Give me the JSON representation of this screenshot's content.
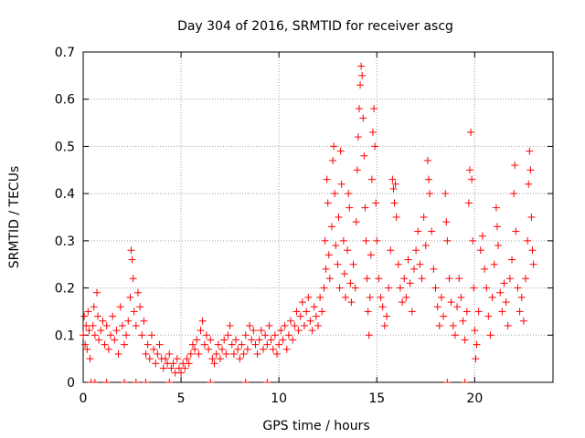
{
  "chart_data": {
    "type": "scatter",
    "title": "Day 304 of 2016, SRMTID for receiver ascg",
    "xlabel": "GPS time / hours",
    "ylabel": "SRMTID / TECUs",
    "xlim": [
      0,
      24
    ],
    "ylim": [
      0,
      0.7
    ],
    "xticks": [
      0,
      5,
      10,
      15,
      20
    ],
    "yticks": [
      0,
      0.1,
      0.2,
      0.3,
      0.4,
      0.5,
      0.6,
      0.7
    ],
    "xtick_labels": [
      "0",
      "5",
      "10",
      "15",
      "20"
    ],
    "ytick_labels": [
      "0",
      "0.1",
      "0.2",
      "0.3",
      "0.4",
      "0.5",
      "0.6",
      "0.7"
    ],
    "grid": true,
    "marker": "+",
    "color": "#ff0000",
    "series": [
      {
        "name": "SRMTID",
        "points": [
          [
            0.0,
            0.1
          ],
          [
            0.05,
            0.14
          ],
          [
            0.1,
            0.08
          ],
          [
            0.15,
            0.12
          ],
          [
            0.2,
            0.07
          ],
          [
            0.25,
            0.15
          ],
          [
            0.3,
            0.11
          ],
          [
            0.35,
            0.05
          ],
          [
            0.5,
            0.12
          ],
          [
            0.55,
            0.16
          ],
          [
            0.6,
            0.1
          ],
          [
            0.7,
            0.19
          ],
          [
            0.75,
            0.14
          ],
          [
            0.8,
            0.09
          ],
          [
            0.9,
            0.11
          ],
          [
            1.0,
            0.13
          ],
          [
            1.1,
            0.08
          ],
          [
            1.2,
            0.12
          ],
          [
            1.3,
            0.07
          ],
          [
            1.4,
            0.1
          ],
          [
            1.5,
            0.14
          ],
          [
            1.6,
            0.09
          ],
          [
            1.7,
            0.11
          ],
          [
            1.8,
            0.06
          ],
          [
            1.9,
            0.16
          ],
          [
            2.0,
            0.12
          ],
          [
            2.1,
            0.08
          ],
          [
            2.2,
            0.1
          ],
          [
            2.3,
            0.13
          ],
          [
            2.4,
            0.18
          ],
          [
            2.45,
            0.28
          ],
          [
            2.5,
            0.26
          ],
          [
            2.55,
            0.22
          ],
          [
            2.6,
            0.15
          ],
          [
            2.7,
            0.12
          ],
          [
            2.8,
            0.19
          ],
          [
            2.9,
            0.16
          ],
          [
            3.0,
            0.1
          ],
          [
            3.1,
            0.13
          ],
          [
            3.2,
            0.06
          ],
          [
            3.3,
            0.08
          ],
          [
            3.4,
            0.05
          ],
          [
            3.5,
            0.1
          ],
          [
            3.6,
            0.07
          ],
          [
            3.7,
            0.04
          ],
          [
            3.8,
            0.06
          ],
          [
            3.9,
            0.08
          ],
          [
            4.0,
            0.05
          ],
          [
            4.1,
            0.03
          ],
          [
            4.2,
            0.05
          ],
          [
            4.3,
            0.04
          ],
          [
            4.4,
            0.06
          ],
          [
            4.5,
            0.03
          ],
          [
            4.6,
            0.04
          ],
          [
            4.7,
            0.02
          ],
          [
            4.8,
            0.05
          ],
          [
            4.9,
            0.03
          ],
          [
            5.0,
            0.02
          ],
          [
            5.1,
            0.04
          ],
          [
            5.2,
            0.03
          ],
          [
            5.3,
            0.05
          ],
          [
            5.4,
            0.04
          ],
          [
            5.5,
            0.06
          ],
          [
            5.6,
            0.08
          ],
          [
            5.7,
            0.07
          ],
          [
            5.8,
            0.09
          ],
          [
            5.9,
            0.06
          ],
          [
            6.0,
            0.11
          ],
          [
            6.1,
            0.13
          ],
          [
            6.2,
            0.08
          ],
          [
            6.3,
            0.1
          ],
          [
            6.4,
            0.07
          ],
          [
            6.5,
            0.09
          ],
          [
            6.6,
            0.05
          ],
          [
            6.7,
            0.04
          ],
          [
            6.8,
            0.06
          ],
          [
            6.9,
            0.08
          ],
          [
            7.0,
            0.05
          ],
          [
            7.1,
            0.07
          ],
          [
            7.2,
            0.09
          ],
          [
            7.3,
            0.06
          ],
          [
            7.4,
            0.1
          ],
          [
            7.5,
            0.12
          ],
          [
            7.6,
            0.08
          ],
          [
            7.7,
            0.06
          ],
          [
            7.8,
            0.09
          ],
          [
            7.9,
            0.07
          ],
          [
            8.0,
            0.05
          ],
          [
            8.1,
            0.08
          ],
          [
            8.2,
            0.06
          ],
          [
            8.3,
            0.1
          ],
          [
            8.4,
            0.07
          ],
          [
            8.5,
            0.12
          ],
          [
            8.6,
            0.09
          ],
          [
            8.7,
            0.11
          ],
          [
            8.8,
            0.08
          ],
          [
            8.9,
            0.06
          ],
          [
            9.0,
            0.09
          ],
          [
            9.1,
            0.11
          ],
          [
            9.2,
            0.07
          ],
          [
            9.3,
            0.1
          ],
          [
            9.4,
            0.08
          ],
          [
            9.5,
            0.12
          ],
          [
            9.6,
            0.09
          ],
          [
            9.7,
            0.07
          ],
          [
            9.8,
            0.1
          ],
          [
            9.9,
            0.06
          ],
          [
            10.0,
            0.08
          ],
          [
            10.1,
            0.11
          ],
          [
            10.2,
            0.09
          ],
          [
            10.3,
            0.12
          ],
          [
            10.4,
            0.07
          ],
          [
            10.5,
            0.1
          ],
          [
            10.6,
            0.13
          ],
          [
            10.7,
            0.09
          ],
          [
            10.8,
            0.12
          ],
          [
            10.9,
            0.15
          ],
          [
            11.0,
            0.11
          ],
          [
            11.1,
            0.14
          ],
          [
            11.2,
            0.17
          ],
          [
            11.3,
            0.12
          ],
          [
            11.4,
            0.15
          ],
          [
            11.5,
            0.18
          ],
          [
            11.6,
            0.13
          ],
          [
            11.7,
            0.11
          ],
          [
            11.8,
            0.16
          ],
          [
            11.9,
            0.14
          ],
          [
            12.0,
            0.12
          ],
          [
            12.1,
            0.18
          ],
          [
            12.2,
            0.15
          ],
          [
            12.3,
            0.2
          ],
          [
            12.35,
            0.3
          ],
          [
            12.4,
            0.24
          ],
          [
            12.45,
            0.43
          ],
          [
            12.5,
            0.38
          ],
          [
            12.55,
            0.27
          ],
          [
            12.6,
            0.22
          ],
          [
            12.7,
            0.33
          ],
          [
            12.75,
            0.47
          ],
          [
            12.8,
            0.5
          ],
          [
            12.85,
            0.4
          ],
          [
            12.9,
            0.29
          ],
          [
            13.0,
            0.25
          ],
          [
            13.05,
            0.35
          ],
          [
            13.1,
            0.2
          ],
          [
            13.15,
            0.49
          ],
          [
            13.2,
            0.42
          ],
          [
            13.3,
            0.3
          ],
          [
            13.35,
            0.23
          ],
          [
            13.4,
            0.18
          ],
          [
            13.5,
            0.28
          ],
          [
            13.55,
            0.4
          ],
          [
            13.6,
            0.37
          ],
          [
            13.65,
            0.21
          ],
          [
            13.7,
            0.17
          ],
          [
            13.8,
            0.25
          ],
          [
            13.9,
            0.2
          ],
          [
            13.95,
            0.34
          ],
          [
            14.0,
            0.45
          ],
          [
            14.05,
            0.52
          ],
          [
            14.1,
            0.58
          ],
          [
            14.15,
            0.63
          ],
          [
            14.2,
            0.67
          ],
          [
            14.25,
            0.65
          ],
          [
            14.3,
            0.56
          ],
          [
            14.35,
            0.48
          ],
          [
            14.4,
            0.37
          ],
          [
            14.45,
            0.3
          ],
          [
            14.5,
            0.22
          ],
          [
            14.55,
            0.15
          ],
          [
            14.6,
            0.1
          ],
          [
            14.65,
            0.18
          ],
          [
            14.7,
            0.27
          ],
          [
            14.75,
            0.43
          ],
          [
            14.8,
            0.53
          ],
          [
            14.85,
            0.58
          ],
          [
            14.9,
            0.5
          ],
          [
            14.95,
            0.38
          ],
          [
            15.0,
            0.3
          ],
          [
            15.1,
            0.22
          ],
          [
            15.2,
            0.18
          ],
          [
            15.3,
            0.16
          ],
          [
            15.4,
            0.12
          ],
          [
            15.5,
            0.14
          ],
          [
            15.6,
            0.2
          ],
          [
            15.7,
            0.28
          ],
          [
            15.8,
            0.43
          ],
          [
            15.85,
            0.41
          ],
          [
            15.9,
            0.38
          ],
          [
            15.95,
            0.42
          ],
          [
            16.0,
            0.35
          ],
          [
            16.1,
            0.25
          ],
          [
            16.2,
            0.2
          ],
          [
            16.3,
            0.17
          ],
          [
            16.4,
            0.22
          ],
          [
            16.5,
            0.18
          ],
          [
            16.6,
            0.26
          ],
          [
            16.7,
            0.21
          ],
          [
            16.8,
            0.15
          ],
          [
            16.9,
            0.24
          ],
          [
            17.0,
            0.28
          ],
          [
            17.1,
            0.32
          ],
          [
            17.2,
            0.25
          ],
          [
            17.3,
            0.22
          ],
          [
            17.4,
            0.35
          ],
          [
            17.5,
            0.29
          ],
          [
            17.6,
            0.47
          ],
          [
            17.65,
            0.43
          ],
          [
            17.7,
            0.4
          ],
          [
            17.8,
            0.32
          ],
          [
            17.9,
            0.24
          ],
          [
            18.0,
            0.2
          ],
          [
            18.1,
            0.16
          ],
          [
            18.2,
            0.12
          ],
          [
            18.3,
            0.18
          ],
          [
            18.4,
            0.14
          ],
          [
            18.5,
            0.4
          ],
          [
            18.55,
            0.34
          ],
          [
            18.6,
            0.3
          ],
          [
            18.7,
            0.22
          ],
          [
            18.8,
            0.17
          ],
          [
            18.9,
            0.12
          ],
          [
            19.0,
            0.1
          ],
          [
            19.1,
            0.16
          ],
          [
            19.2,
            0.22
          ],
          [
            19.3,
            0.18
          ],
          [
            19.4,
            0.13
          ],
          [
            19.5,
            0.09
          ],
          [
            19.6,
            0.15
          ],
          [
            19.7,
            0.38
          ],
          [
            19.75,
            0.45
          ],
          [
            19.8,
            0.53
          ],
          [
            19.85,
            0.43
          ],
          [
            19.9,
            0.3
          ],
          [
            19.95,
            0.2
          ],
          [
            20.0,
            0.11
          ],
          [
            20.05,
            0.05
          ],
          [
            20.1,
            0.08
          ],
          [
            20.2,
            0.15
          ],
          [
            20.3,
            0.28
          ],
          [
            20.4,
            0.31
          ],
          [
            20.5,
            0.24
          ],
          [
            20.6,
            0.2
          ],
          [
            20.7,
            0.14
          ],
          [
            20.8,
            0.1
          ],
          [
            20.9,
            0.18
          ],
          [
            21.0,
            0.25
          ],
          [
            21.1,
            0.37
          ],
          [
            21.15,
            0.33
          ],
          [
            21.2,
            0.29
          ],
          [
            21.3,
            0.19
          ],
          [
            21.4,
            0.15
          ],
          [
            21.5,
            0.21
          ],
          [
            21.6,
            0.17
          ],
          [
            21.7,
            0.12
          ],
          [
            21.8,
            0.22
          ],
          [
            21.9,
            0.26
          ],
          [
            22.0,
            0.4
          ],
          [
            22.05,
            0.46
          ],
          [
            22.1,
            0.32
          ],
          [
            22.2,
            0.2
          ],
          [
            22.3,
            0.15
          ],
          [
            22.4,
            0.18
          ],
          [
            22.5,
            0.13
          ],
          [
            22.6,
            0.22
          ],
          [
            22.7,
            0.3
          ],
          [
            22.75,
            0.42
          ],
          [
            22.8,
            0.49
          ],
          [
            22.85,
            0.45
          ],
          [
            22.9,
            0.35
          ],
          [
            22.95,
            0.28
          ],
          [
            23.0,
            0.25
          ]
        ]
      }
    ],
    "zero_marks_x": [
      0.4,
      0.6,
      1.2,
      2.1,
      2.7,
      3.2,
      4.4,
      6.5,
      8.3,
      9.4,
      18.6,
      19.5
    ]
  }
}
